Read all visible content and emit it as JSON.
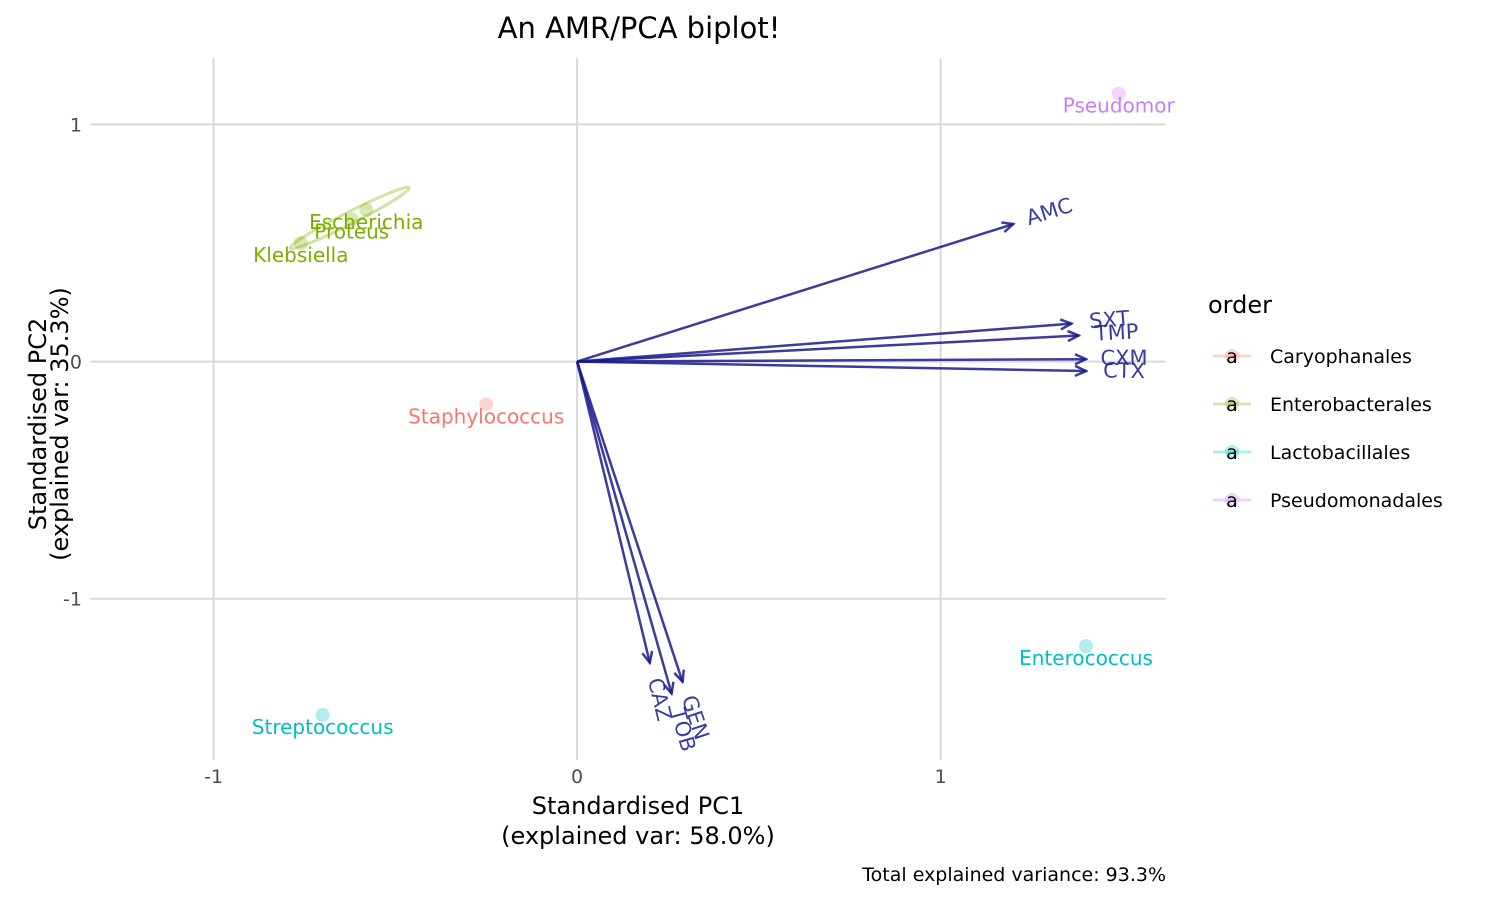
{
  "chart_data": {
    "type": "scatter",
    "title": "An AMR/PCA biplot!",
    "xlabel_lines": [
      "Standardised PC1",
      "(explained var: 58.0%)"
    ],
    "ylabel_lines": [
      "Standardised PC2",
      "(explained var: 35.3%)"
    ],
    "caption": "Total explained variance: 93.3%",
    "xlim": [
      -1.34,
      1.62
    ],
    "ylim": [
      -1.68,
      1.28
    ],
    "xticks": [
      -1,
      0,
      1
    ],
    "yticks": [
      -1,
      0,
      1
    ],
    "grid": true,
    "legend": {
      "title": "order",
      "position": "right",
      "key_glyph": "a",
      "entries": [
        {
          "name": "Caryophanales",
          "color": "#F8766D"
        },
        {
          "name": "Enterobacterales",
          "color": "#7CAE00"
        },
        {
          "name": "Lactobacillales",
          "color": "#00BFC4"
        },
        {
          "name": "Pseudomonadales",
          "color": "#C77CFF"
        }
      ]
    },
    "points": [
      {
        "label": "Staphylococcus",
        "order": "Caryophanales",
        "x": -0.25,
        "y": -0.18
      },
      {
        "label": "Escherichia",
        "order": "Enterobacterales",
        "x": -0.58,
        "y": 0.64
      },
      {
        "label": "Proteus",
        "order": "Enterobacterales",
        "x": -0.62,
        "y": 0.6
      },
      {
        "label": "Klebsiella",
        "order": "Enterobacterales",
        "x": -0.76,
        "y": 0.5
      },
      {
        "label": "Streptococcus",
        "order": "Lactobacillales",
        "x": -0.7,
        "y": -1.49
      },
      {
        "label": "Enterococcus",
        "order": "Lactobacillales",
        "x": 1.4,
        "y": -1.2
      },
      {
        "label": "Pseudomonas",
        "label_shown": "Pseudomor",
        "order": "Pseudomonadales",
        "x": 1.49,
        "y": 1.13
      }
    ],
    "ellipse": {
      "order": "Enterobacterales"
    },
    "loadings": {
      "color": "#1A1A8C",
      "vectors": [
        {
          "name": "AMC",
          "x": 1.2,
          "y": 0.58
        },
        {
          "name": "SXT",
          "x": 1.36,
          "y": 0.16
        },
        {
          "name": "TMP",
          "x": 1.38,
          "y": 0.11
        },
        {
          "name": "CXM",
          "x": 1.4,
          "y": 0.01
        },
        {
          "name": "CTX",
          "x": 1.4,
          "y": -0.04
        },
        {
          "name": "CAZ",
          "x": 0.2,
          "y": -1.27
        },
        {
          "name": "GEN",
          "x": 0.29,
          "y": -1.35
        },
        {
          "name": "TOB",
          "x": 0.26,
          "y": -1.4
        }
      ]
    }
  }
}
